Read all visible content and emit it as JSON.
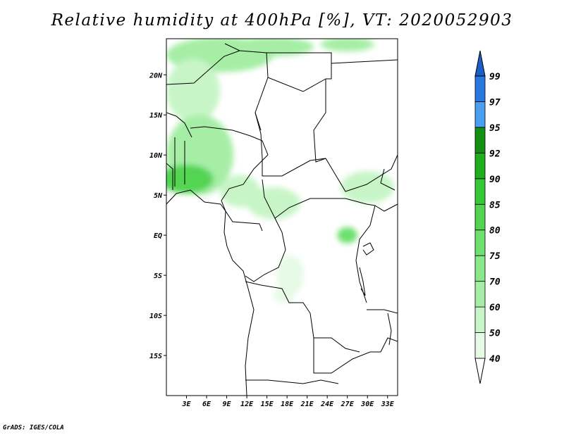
{
  "title": "Relative humidity at 400hPa [%], VT: 2020052903",
  "credit": "GrADS: IGES/COLA",
  "map": {
    "lon_range": [
      0,
      34.5
    ],
    "lat_range": [
      -20,
      24.5
    ],
    "lon_ticks": [
      {
        "value": 3,
        "label": "3E"
      },
      {
        "value": 6,
        "label": "6E"
      },
      {
        "value": 9,
        "label": "9E"
      },
      {
        "value": 12,
        "label": "12E"
      },
      {
        "value": 15,
        "label": "15E"
      },
      {
        "value": 18,
        "label": "18E"
      },
      {
        "value": 21,
        "label": "21E"
      },
      {
        "value": 24,
        "label": "24E"
      },
      {
        "value": 27,
        "label": "27E"
      },
      {
        "value": 30,
        "label": "30E"
      },
      {
        "value": 33,
        "label": "33E"
      }
    ],
    "lat_ticks": [
      {
        "value": 20,
        "label": "20N"
      },
      {
        "value": 15,
        "label": "15N"
      },
      {
        "value": 10,
        "label": "10N"
      },
      {
        "value": 5,
        "label": "5N"
      },
      {
        "value": 0,
        "label": "EQ"
      },
      {
        "value": -5,
        "label": "5S"
      },
      {
        "value": -10,
        "label": "10S"
      },
      {
        "value": -15,
        "label": "15S"
      }
    ]
  },
  "colorbar": {
    "levels": [
      "40",
      "50",
      "60",
      "70",
      "75",
      "80",
      "85",
      "90",
      "92",
      "95",
      "97",
      "99"
    ],
    "colors": [
      "#ffffff",
      "#e6fae6",
      "#c8f5c8",
      "#a6eea6",
      "#8ae88a",
      "#6ee06e",
      "#52d452",
      "#37c837",
      "#1eae1e",
      "#139013",
      "#4a9ff0",
      "#2878e0",
      "#1c5ec8"
    ]
  },
  "humidity_patches": [
    {
      "lon": 8,
      "lat": 22.5,
      "rx": 8,
      "ry": 2.2,
      "level": 3
    },
    {
      "lon": 16,
      "lat": 23.5,
      "rx": 6,
      "ry": 1.2,
      "level": 3
    },
    {
      "lon": 27,
      "lat": 23.8,
      "rx": 4,
      "ry": 0.9,
      "level": 3
    },
    {
      "lon": 4,
      "lat": 18,
      "rx": 4,
      "ry": 4,
      "level": 2
    },
    {
      "lon": 5,
      "lat": 10,
      "rx": 5,
      "ry": 5,
      "level": 3
    },
    {
      "lon": 3,
      "lat": 7,
      "rx": 4,
      "ry": 1.8,
      "level": 6
    },
    {
      "lon": 11,
      "lat": 5.5,
      "rx": 3,
      "ry": 2,
      "level": 2
    },
    {
      "lon": 16,
      "lat": 4,
      "rx": 4,
      "ry": 2,
      "level": 2
    },
    {
      "lon": 30,
      "lat": 6,
      "rx": 4,
      "ry": 2,
      "level": 2
    },
    {
      "lon": 27,
      "lat": 0,
      "rx": 1.5,
      "ry": 1,
      "level": 5
    },
    {
      "lon": 18.5,
      "lat": -5,
      "rx": 2,
      "ry": 2.5,
      "level": 1
    },
    {
      "lon": 17.5,
      "lat": -7.5,
      "rx": 1.5,
      "ry": 1,
      "level": 1
    }
  ]
}
